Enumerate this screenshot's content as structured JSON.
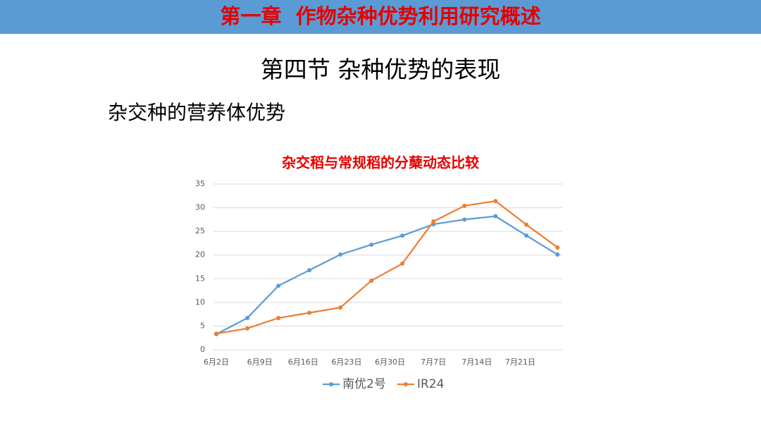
{
  "header": {
    "title": "第一章  作物杂种优势利用研究概述"
  },
  "section_title": "第四节 杂种优势的表现",
  "subtitle": "杂交种的营养体优势",
  "chart_data": {
    "type": "line",
    "title": "杂交稻与常规稻的分蘖动态比较",
    "x": [
      2,
      7,
      12,
      17,
      22,
      27,
      32,
      37,
      42,
      47,
      52,
      57
    ],
    "xlim": [
      2,
      58
    ],
    "xticks": [
      {
        "value": 2,
        "label": "6月2日"
      },
      {
        "value": 9,
        "label": "6月9日"
      },
      {
        "value": 16,
        "label": "6月16日"
      },
      {
        "value": 23,
        "label": "6月23日"
      },
      {
        "value": 30,
        "label": "6月30日"
      },
      {
        "value": 37,
        "label": "7月7日"
      },
      {
        "value": 44,
        "label": "7月14日"
      },
      {
        "value": 51,
        "label": "7月21日"
      }
    ],
    "ylim": [
      0,
      35
    ],
    "yticks": [
      0,
      5,
      10,
      15,
      20,
      25,
      30,
      35
    ],
    "grid": true,
    "legend": "bottom",
    "series": [
      {
        "name": "南优2号",
        "color": "#5b9bd5",
        "values": [
          3.3,
          6.7,
          13.5,
          16.8,
          20.1,
          22.2,
          24.1,
          26.5,
          27.5,
          28.2,
          24.1,
          20.1
        ]
      },
      {
        "name": "IR24",
        "color": "#ed7d31",
        "values": [
          3.4,
          4.5,
          6.7,
          7.8,
          8.9,
          14.6,
          18.2,
          27.1,
          30.4,
          31.4,
          26.4,
          21.6
        ]
      }
    ]
  }
}
